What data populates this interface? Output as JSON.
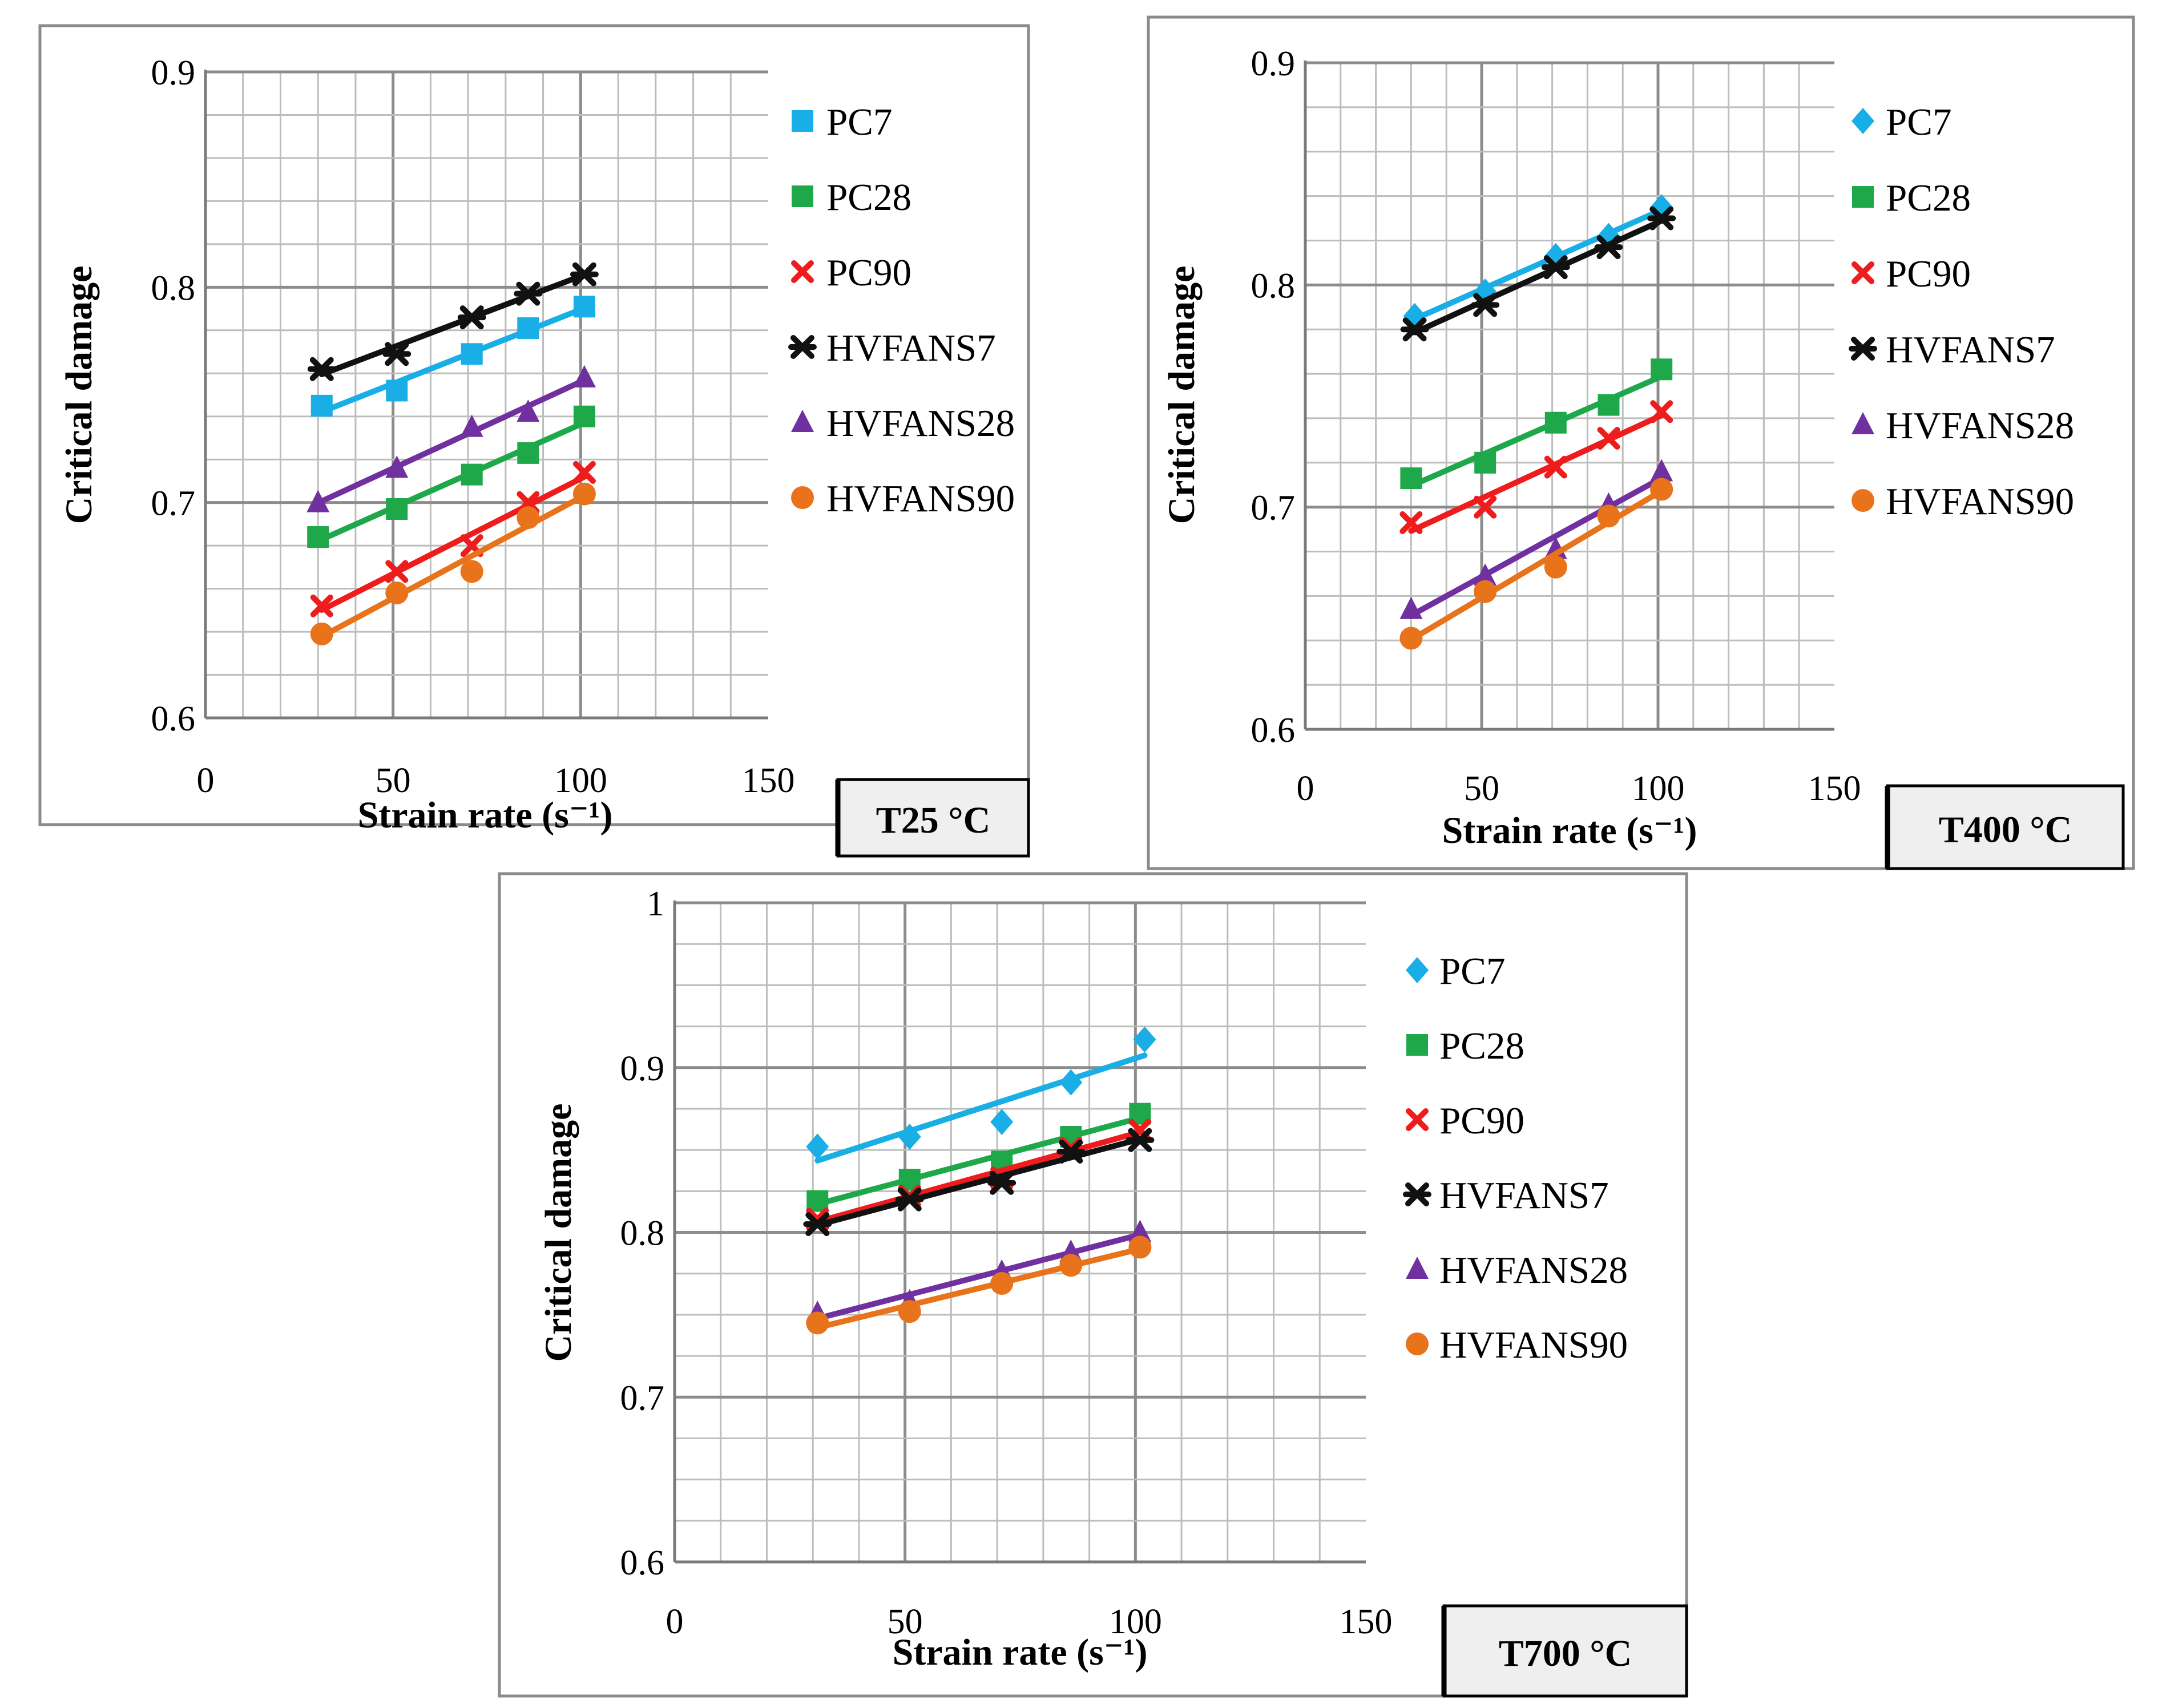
{
  "colors": {
    "PC7": "#19aee6",
    "PC28": "#1ea84a",
    "PC90": "#ee1c1c",
    "HVFANS7": "#111111",
    "HVFANS28": "#7030a0",
    "HVFANS90": "#e8731b"
  },
  "chart_data": [
    {
      "type": "scatter",
      "panel": "T25",
      "temperature_label": "T25 °C",
      "xlabel": "Strain rate (s⁻¹)",
      "ylabel": "Critical damage",
      "xlim": [
        0,
        150
      ],
      "ylim": [
        0.6,
        0.9
      ],
      "x_ticks": [
        "0",
        "50",
        "100",
        "150"
      ],
      "y_ticks": [
        "0.6",
        "0.7",
        "0.8",
        "0.9"
      ],
      "x_grid_step": 10,
      "y_grid_step": 0.02,
      "trendlines": true,
      "grid": true,
      "series": [
        {
          "name": "PC7",
          "marker": "square",
          "x": [
            31,
            51,
            71,
            86,
            101
          ],
          "y": [
            0.745,
            0.752,
            0.769,
            0.781,
            0.791
          ]
        },
        {
          "name": "PC28",
          "marker": "square",
          "x": [
            30,
            51,
            71,
            86,
            101
          ],
          "y": [
            0.684,
            0.697,
            0.713,
            0.723,
            0.74
          ]
        },
        {
          "name": "PC90",
          "marker": "x",
          "x": [
            31,
            51,
            71,
            86,
            101
          ],
          "y": [
            0.652,
            0.668,
            0.68,
            0.7,
            0.714
          ]
        },
        {
          "name": "HVFANS7",
          "marker": "star",
          "x": [
            31,
            51,
            71,
            86,
            101
          ],
          "y": [
            0.762,
            0.769,
            0.786,
            0.797,
            0.806
          ]
        },
        {
          "name": "HVFANS28",
          "marker": "triangle",
          "x": [
            30,
            51,
            71,
            86,
            101
          ],
          "y": [
            0.7,
            0.716,
            0.735,
            0.742,
            0.758
          ]
        },
        {
          "name": "HVFANS90",
          "marker": "circle",
          "x": [
            31,
            51,
            71,
            86,
            101
          ],
          "y": [
            0.639,
            0.658,
            0.668,
            0.693,
            0.704
          ]
        }
      ]
    },
    {
      "type": "scatter",
      "panel": "T400",
      "temperature_label": "T400 °C",
      "xlabel": "Strain rate (s⁻¹)",
      "ylabel": "Critical damage",
      "xlim": [
        0,
        150
      ],
      "ylim": [
        0.6,
        0.9
      ],
      "x_ticks": [
        "0",
        "50",
        "100",
        "150"
      ],
      "y_ticks": [
        "0.6",
        "0.7",
        "0.8",
        "0.9"
      ],
      "x_grid_step": 10,
      "y_grid_step": 0.02,
      "trendlines": true,
      "grid": true,
      "series": [
        {
          "name": "PC7",
          "marker": "diamond",
          "x": [
            31,
            51,
            71,
            86,
            101
          ],
          "y": [
            0.786,
            0.797,
            0.813,
            0.822,
            0.835
          ]
        },
        {
          "name": "PC28",
          "marker": "square",
          "x": [
            30,
            51,
            71,
            86,
            101
          ],
          "y": [
            0.713,
            0.72,
            0.738,
            0.746,
            0.762
          ]
        },
        {
          "name": "PC90",
          "marker": "x",
          "x": [
            30,
            51,
            71,
            86,
            101
          ],
          "y": [
            0.693,
            0.7,
            0.718,
            0.731,
            0.743
          ]
        },
        {
          "name": "HVFANS7",
          "marker": "star",
          "x": [
            31,
            51,
            71,
            86,
            101
          ],
          "y": [
            0.78,
            0.791,
            0.808,
            0.817,
            0.83
          ]
        },
        {
          "name": "HVFANS28",
          "marker": "triangle",
          "x": [
            30,
            51,
            71,
            86,
            101
          ],
          "y": [
            0.654,
            0.669,
            0.681,
            0.701,
            0.716
          ]
        },
        {
          "name": "HVFANS90",
          "marker": "circle",
          "x": [
            30,
            51,
            71,
            86,
            101
          ],
          "y": [
            0.641,
            0.662,
            0.673,
            0.696,
            0.708
          ]
        }
      ]
    },
    {
      "type": "scatter",
      "panel": "T700",
      "temperature_label": "T700 °C",
      "xlabel": "Strain rate (s⁻¹)",
      "ylabel": "Critical damage",
      "xlim": [
        0,
        150
      ],
      "ylim": [
        0.6,
        1.0
      ],
      "x_ticks": [
        "0",
        "50",
        "100",
        "150"
      ],
      "y_ticks": [
        "0.6",
        "0.7",
        "0.8",
        "0.9",
        "1"
      ],
      "x_grid_step": 10,
      "y_grid_step": 0.025,
      "trendlines": true,
      "grid": true,
      "series": [
        {
          "name": "PC7",
          "marker": "diamond",
          "x": [
            31,
            51,
            71,
            86,
            102
          ],
          "y": [
            0.852,
            0.858,
            0.867,
            0.891,
            0.917
          ]
        },
        {
          "name": "PC28",
          "marker": "square",
          "x": [
            31,
            51,
            71,
            86,
            101
          ],
          "y": [
            0.819,
            0.832,
            0.843,
            0.858,
            0.872
          ]
        },
        {
          "name": "PC90",
          "marker": "x",
          "x": [
            31,
            51,
            71,
            86,
            101
          ],
          "y": [
            0.808,
            0.822,
            0.833,
            0.851,
            0.862
          ]
        },
        {
          "name": "HVFANS7",
          "marker": "star",
          "x": [
            31,
            51,
            71,
            86,
            101
          ],
          "y": [
            0.805,
            0.82,
            0.83,
            0.849,
            0.856
          ]
        },
        {
          "name": "HVFANS28",
          "marker": "triangle",
          "x": [
            31,
            51,
            71,
            86,
            101
          ],
          "y": [
            0.751,
            0.758,
            0.776,
            0.788,
            0.8
          ]
        },
        {
          "name": "HVFANS90",
          "marker": "circle",
          "x": [
            31,
            51,
            71,
            86,
            101
          ],
          "y": [
            0.745,
            0.752,
            0.769,
            0.78,
            0.791
          ]
        }
      ]
    }
  ]
}
